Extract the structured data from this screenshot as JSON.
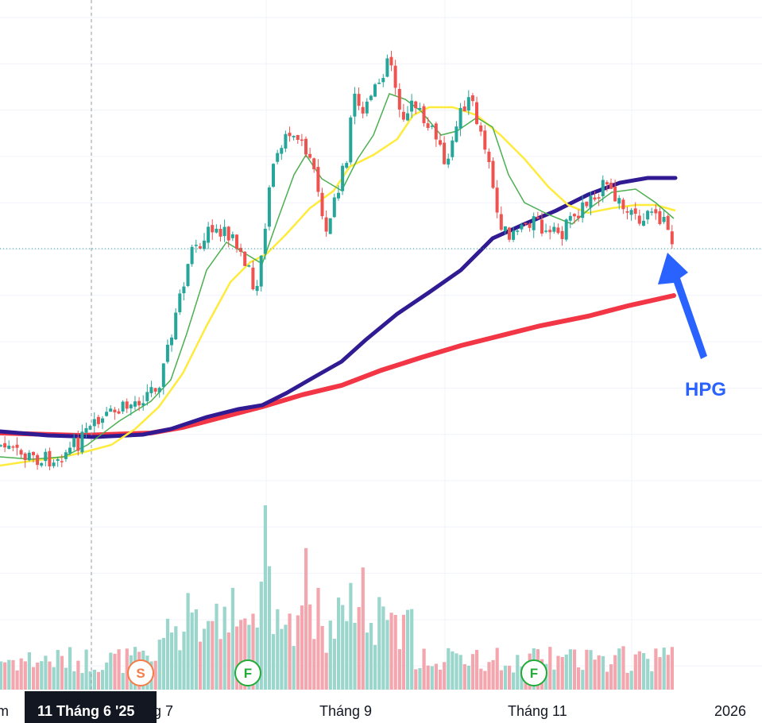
{
  "chart_data": {
    "type": "candlestick",
    "symbol_annotation": "HPG",
    "x_axis": {
      "tick_labels": [
        "m",
        "g 7",
        "Tháng 9",
        "Tháng 11",
        "2026"
      ],
      "crosshair_label": "11 Tháng 6 '25"
    },
    "grid": true,
    "colors": {
      "up": "#26a69a",
      "down": "#ef5350",
      "ma_fast": "#4caf50",
      "ma_mid": "#ffeb3b",
      "ma_slow": "#311b92",
      "ma_long": "#f23645",
      "arrow": "#2962ff",
      "volume_up": "#9bd6cd",
      "volume_down": "#f3a6ad",
      "badge_s": "#f57c45",
      "badge_f": "#22ab38"
    },
    "events": [
      {
        "letter": "S",
        "position": "Tháng 6"
      },
      {
        "letter": "F",
        "position": "Tháng 7"
      },
      {
        "letter": "F",
        "position": "Tháng 11"
      }
    ],
    "arrow_annotation": "points to last candle"
  }
}
